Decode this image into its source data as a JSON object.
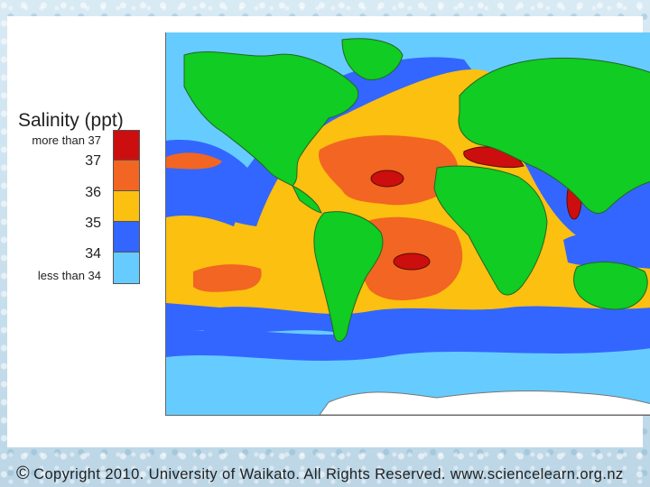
{
  "legend": {
    "title": "Salinity (ppt)",
    "entries": [
      {
        "label": "more than 37",
        "color": "#cc0e0e"
      },
      {
        "label": "37",
        "color": "#f26522"
      },
      {
        "label": "36",
        "color": "#fbc010"
      },
      {
        "label": "35",
        "color": "#3366ff"
      },
      {
        "label": "34",
        "color": "#66ccff"
      },
      {
        "label": "less than 34",
        "color": ""
      }
    ]
  },
  "colors": {
    "land": "#11cc22",
    "ice": "#ffffff",
    "ocean_34": "#66ccff",
    "ocean_35": "#3366ff",
    "ocean_36": "#fbc010",
    "ocean_37": "#f26522",
    "ocean_gt37": "#cc0e0e"
  },
  "footer": {
    "symbol": "©",
    "text": "Copyright 2010. University of Waikato. All Rights Reserved. www.sciencelearn.org.nz"
  }
}
